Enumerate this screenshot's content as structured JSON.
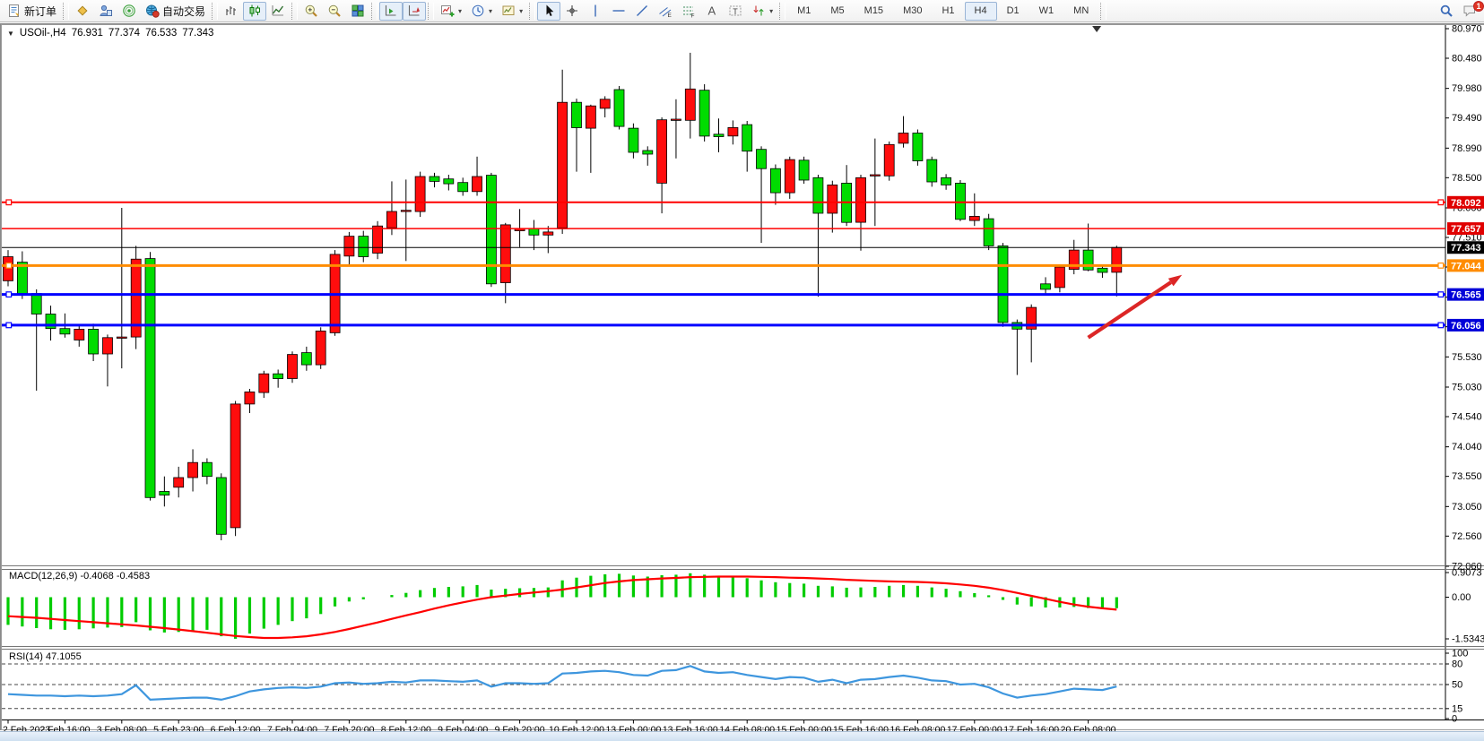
{
  "toolbar": {
    "badge_count": "1",
    "groups": [
      {
        "name": "order",
        "items": [
          {
            "name": "new-order-button",
            "icon": "new-order-icon",
            "label": "新订单"
          }
        ]
      },
      {
        "name": "services",
        "items": [
          {
            "name": "market-watch-button",
            "icon": "market-watch-icon"
          },
          {
            "name": "strategy-tester-button",
            "icon": "tester-icon"
          },
          {
            "name": "alerts-button",
            "icon": "alerts-icon"
          },
          {
            "name": "auto-trading-button",
            "icon": "autotrading-icon",
            "label": "自动交易"
          }
        ]
      },
      {
        "name": "chart-type",
        "items": [
          {
            "name": "bar-chart-button",
            "icon": "bar-chart-icon"
          },
          {
            "name": "candlestick-button",
            "icon": "candles-icon",
            "active": true
          },
          {
            "name": "line-chart-button",
            "icon": "line-chart-icon"
          }
        ]
      },
      {
        "name": "zoom",
        "items": [
          {
            "name": "zoom-in-button",
            "icon": "zoom-in-icon"
          },
          {
            "name": "zoom-out-button",
            "icon": "zoom-out-icon"
          },
          {
            "name": "tile-windows-button",
            "icon": "tile-windows-icon"
          }
        ]
      },
      {
        "name": "scroll",
        "items": [
          {
            "name": "chart-shift-button",
            "icon": "chart-shift-icon",
            "active": true
          },
          {
            "name": "auto-scroll-button",
            "icon": "auto-scroll-icon",
            "active": true
          }
        ]
      },
      {
        "name": "objects",
        "items": [
          {
            "name": "indicators-button",
            "icon": "add-indicator-icon",
            "dropdown": true
          },
          {
            "name": "periods-button",
            "icon": "period-clock-icon",
            "dropdown": true
          },
          {
            "name": "templates-button",
            "icon": "template-icon",
            "dropdown": true
          }
        ]
      },
      {
        "name": "tools",
        "items": [
          {
            "name": "cursor-button",
            "icon": "cursor-icon",
            "active": true
          },
          {
            "name": "crosshair-button",
            "icon": "crosshair-icon"
          },
          {
            "name": "vline-button",
            "icon": "vline-icon"
          },
          {
            "name": "hline-button",
            "icon": "hline-icon"
          },
          {
            "name": "trendline-button",
            "icon": "trendline-icon"
          },
          {
            "name": "channel-button",
            "icon": "channel-icon"
          },
          {
            "name": "fibonacci-button",
            "icon": "fibo-icon"
          },
          {
            "name": "text-button",
            "icon": "text-icon"
          },
          {
            "name": "label-button",
            "icon": "label-icon"
          },
          {
            "name": "shapes-button",
            "icon": "shapes-icon",
            "dropdown": true
          }
        ]
      },
      {
        "name": "timeframes",
        "items": [
          {
            "name": "timeframe-m1-button",
            "label": "M1"
          },
          {
            "name": "timeframe-m5-button",
            "label": "M5"
          },
          {
            "name": "timeframe-m15-button",
            "label": "M15"
          },
          {
            "name": "timeframe-m30-button",
            "label": "M30"
          },
          {
            "name": "timeframe-h1-button",
            "label": "H1"
          },
          {
            "name": "timeframe-h4-button",
            "label": "H4",
            "active": true
          },
          {
            "name": "timeframe-d1-button",
            "label": "D1"
          },
          {
            "name": "timeframe-w1-button",
            "label": "W1"
          },
          {
            "name": "timeframe-mn-button",
            "label": "MN"
          }
        ]
      },
      {
        "name": "right",
        "align": "right",
        "items": [
          {
            "name": "search-button",
            "icon": "search-icon"
          },
          {
            "name": "chat-button",
            "icon": "chat-icon",
            "badge": "1"
          }
        ]
      }
    ]
  },
  "chart_header": {
    "expand_marker": "▼",
    "symbol_period": "USOil-,H4",
    "open": "76.931",
    "high": "77.374",
    "low": "76.533",
    "close": "77.343"
  },
  "colors": {
    "bull": "#FF0D0D",
    "bear": "#00DC00",
    "wick": "#000000",
    "hline_red": "#FF0000",
    "hline_orange": "#FF8C00",
    "hline_blue": "#0000FF",
    "current_line": "#000000",
    "macd_hist": "#00CC00",
    "macd_signal": "#FF0000",
    "rsi_line": "#3E96DE",
    "arrow": "#DC2626",
    "axis_text": "#000000"
  },
  "chart_data": {
    "type": "candlestick",
    "symbol": "USOil-",
    "period": "H4",
    "ylim": [
      72.06,
      80.97
    ],
    "grid": false,
    "price_axis_ticks": [
      "80.970",
      "80.480",
      "79.980",
      "79.490",
      "78.990",
      "78.500",
      "78.000",
      "77.510",
      "77.020",
      "76.520",
      "76.030",
      "75.530",
      "75.030",
      "74.540",
      "74.040",
      "73.550",
      "73.050",
      "72.560",
      "72.060"
    ],
    "time_labels": [
      "2 Feb 2023",
      "2 Feb 16:00",
      "3 Feb 08:00",
      "5 Feb 23:00",
      "6 Feb 12:00",
      "7 Feb 04:00",
      "7 Feb 20:00",
      "8 Feb 12:00",
      "9 Feb 04:00",
      "9 Feb 20:00",
      "10 Feb 12:00",
      "13 Feb 00:00",
      "13 Feb 16:00",
      "14 Feb 08:00",
      "15 Feb 00:00",
      "15 Feb 16:00",
      "16 Feb 08:00",
      "17 Feb 00:00",
      "17 Feb 16:00",
      "20 Feb 08:00"
    ],
    "hlines": [
      {
        "price": 78.092,
        "label": "78.092",
        "color": "#FF0000",
        "width": 2,
        "badge_bg": "#E00000",
        "handles": true
      },
      {
        "price": 77.657,
        "label": "77.657",
        "color": "#FF0000",
        "width": 1.5,
        "badge_bg": "#E00000",
        "handles": false
      },
      {
        "price": 77.343,
        "label": "77.343",
        "color": "#000000",
        "width": 1,
        "badge_bg": "#000000",
        "handles": false,
        "current": true
      },
      {
        "price": 77.044,
        "label": "77.044",
        "color": "#FF8C00",
        "width": 3,
        "badge_bg": "#FF8C00",
        "handles": true
      },
      {
        "price": 76.565,
        "label": "76.565",
        "color": "#0000FF",
        "width": 3,
        "badge_bg": "#0000D8",
        "handles": true
      },
      {
        "price": 76.056,
        "label": "76.056",
        "color": "#0000FF",
        "width": 3,
        "badge_bg": "#0000D8",
        "handles": true
      }
    ],
    "candles": [
      [
        76.79,
        77.3,
        76.7,
        77.19
      ],
      [
        77.1,
        77.28,
        76.49,
        76.58
      ],
      [
        76.58,
        76.65,
        74.97,
        76.24
      ],
      [
        76.24,
        76.38,
        75.8,
        76.0
      ],
      [
        76.0,
        76.25,
        75.85,
        75.91
      ],
      [
        75.81,
        76.05,
        75.7,
        75.99
      ],
      [
        75.99,
        76.08,
        75.46,
        75.58
      ],
      [
        75.58,
        75.9,
        75.04,
        75.85
      ],
      [
        75.85,
        78.0,
        75.34,
        75.86
      ],
      [
        75.86,
        77.37,
        75.66,
        77.15
      ],
      [
        77.16,
        77.27,
        73.15,
        73.2
      ],
      [
        73.3,
        73.55,
        73.05,
        73.24
      ],
      [
        73.37,
        73.71,
        73.2,
        73.53
      ],
      [
        73.53,
        74.0,
        73.3,
        73.78
      ],
      [
        73.78,
        73.85,
        73.42,
        73.55
      ],
      [
        73.53,
        73.6,
        72.49,
        72.59
      ],
      [
        72.7,
        74.8,
        72.56,
        74.75
      ],
      [
        74.75,
        75.0,
        74.6,
        74.95
      ],
      [
        74.94,
        75.3,
        74.85,
        75.25
      ],
      [
        75.25,
        75.32,
        75.02,
        75.17
      ],
      [
        75.17,
        75.62,
        75.1,
        75.57
      ],
      [
        75.6,
        75.7,
        75.3,
        75.4
      ],
      [
        75.4,
        76.02,
        75.33,
        75.96
      ],
      [
        75.93,
        77.3,
        75.88,
        77.23
      ],
      [
        77.2,
        77.6,
        77.05,
        77.53
      ],
      [
        77.53,
        77.62,
        77.1,
        77.19
      ],
      [
        77.25,
        77.78,
        77.15,
        77.7
      ],
      [
        77.67,
        78.44,
        77.55,
        77.94
      ],
      [
        77.95,
        78.47,
        77.12,
        77.96
      ],
      [
        77.94,
        78.6,
        77.85,
        78.52
      ],
      [
        78.52,
        78.58,
        78.34,
        78.44
      ],
      [
        78.48,
        78.55,
        78.29,
        78.4
      ],
      [
        78.42,
        78.5,
        78.2,
        78.27
      ],
      [
        78.27,
        78.85,
        78.2,
        78.52
      ],
      [
        78.54,
        78.58,
        76.69,
        76.74
      ],
      [
        76.76,
        77.75,
        76.42,
        77.72
      ],
      [
        77.62,
        77.98,
        77.35,
        77.66
      ],
      [
        77.66,
        77.8,
        77.3,
        77.55
      ],
      [
        77.55,
        77.7,
        77.25,
        77.6
      ],
      [
        77.67,
        80.29,
        77.57,
        79.75
      ],
      [
        79.75,
        79.81,
        78.6,
        79.33
      ],
      [
        79.32,
        79.71,
        78.58,
        79.69
      ],
      [
        79.65,
        79.85,
        79.5,
        79.8
      ],
      [
        79.96,
        80.02,
        79.3,
        79.35
      ],
      [
        79.32,
        79.4,
        78.82,
        78.92
      ],
      [
        78.95,
        79.02,
        78.7,
        78.89
      ],
      [
        78.41,
        79.5,
        77.91,
        79.46
      ],
      [
        79.45,
        79.8,
        78.82,
        79.47
      ],
      [
        79.45,
        80.57,
        79.15,
        79.97
      ],
      [
        79.95,
        80.05,
        79.1,
        79.19
      ],
      [
        79.22,
        79.48,
        78.92,
        79.18
      ],
      [
        79.19,
        79.45,
        79.05,
        79.33
      ],
      [
        79.38,
        79.44,
        78.6,
        78.94
      ],
      [
        78.97,
        79.02,
        77.42,
        78.65
      ],
      [
        78.65,
        78.72,
        78.05,
        78.25
      ],
      [
        78.25,
        78.85,
        78.15,
        78.8
      ],
      [
        78.79,
        78.85,
        78.4,
        78.46
      ],
      [
        78.5,
        78.55,
        76.53,
        77.91
      ],
      [
        77.91,
        78.45,
        77.59,
        78.38
      ],
      [
        78.41,
        78.71,
        77.7,
        77.76
      ],
      [
        77.76,
        78.55,
        77.29,
        78.5
      ],
      [
        78.53,
        79.15,
        77.7,
        78.55
      ],
      [
        78.53,
        79.1,
        78.45,
        79.05
      ],
      [
        79.07,
        79.52,
        79.0,
        79.24
      ],
      [
        79.24,
        79.3,
        78.7,
        78.78
      ],
      [
        78.8,
        78.85,
        78.35,
        78.43
      ],
      [
        78.5,
        78.56,
        78.3,
        78.38
      ],
      [
        78.41,
        78.46,
        77.78,
        77.81
      ],
      [
        77.79,
        78.24,
        77.7,
        77.86
      ],
      [
        77.82,
        77.9,
        77.3,
        77.37
      ],
      [
        77.37,
        77.42,
        76.03,
        76.1
      ],
      [
        76.1,
        76.15,
        75.23,
        75.99
      ],
      [
        75.99,
        76.4,
        75.44,
        76.35
      ],
      [
        76.74,
        76.85,
        76.55,
        76.65
      ],
      [
        76.68,
        77.05,
        76.6,
        77.02
      ],
      [
        76.98,
        77.47,
        76.9,
        77.3
      ],
      [
        77.3,
        77.74,
        76.95,
        76.97
      ],
      [
        77.0,
        77.05,
        76.84,
        76.93
      ],
      [
        76.931,
        77.374,
        76.533,
        77.343
      ]
    ],
    "macd": {
      "label": "MACD(12,26,9) -0.4068 -0.4583",
      "axis_ticks": [
        "0.9073",
        "0.00",
        "-1.5343"
      ],
      "axis_tick_values": [
        0.9073,
        0.0,
        -1.5343
      ],
      "histogram": [
        -1.02,
        -1.08,
        -1.14,
        -1.18,
        -1.2,
        -1.18,
        -1.15,
        -1.12,
        -1.1,
        -0.92,
        -1.22,
        -1.3,
        -1.28,
        -1.22,
        -1.2,
        -1.44,
        -1.53,
        -1.34,
        -1.16,
        -1.02,
        -0.88,
        -0.78,
        -0.62,
        -0.34,
        -0.16,
        -0.08,
        0.0,
        0.08,
        0.16,
        0.26,
        0.34,
        0.38,
        0.4,
        0.45,
        0.28,
        0.31,
        0.33,
        0.34,
        0.36,
        0.62,
        0.72,
        0.79,
        0.84,
        0.86,
        0.8,
        0.76,
        0.81,
        0.83,
        0.88,
        0.83,
        0.78,
        0.76,
        0.7,
        0.62,
        0.55,
        0.52,
        0.5,
        0.42,
        0.4,
        0.35,
        0.36,
        0.38,
        0.42,
        0.45,
        0.42,
        0.36,
        0.31,
        0.22,
        0.15,
        0.07,
        -0.1,
        -0.27,
        -0.34,
        -0.38,
        -0.38,
        -0.36,
        -0.4,
        -0.44,
        -0.4068
      ],
      "signal": [
        -0.7,
        -0.73,
        -0.76,
        -0.8,
        -0.84,
        -0.88,
        -0.92,
        -0.96,
        -1.0,
        -1.04,
        -1.09,
        -1.14,
        -1.19,
        -1.25,
        -1.31,
        -1.37,
        -1.43,
        -1.47,
        -1.5,
        -1.5,
        -1.48,
        -1.44,
        -1.37,
        -1.28,
        -1.17,
        -1.05,
        -0.93,
        -0.8,
        -0.67,
        -0.55,
        -0.42,
        -0.3,
        -0.19,
        -0.09,
        0.0,
        0.06,
        0.12,
        0.17,
        0.22,
        0.28,
        0.36,
        0.44,
        0.52,
        0.58,
        0.63,
        0.66,
        0.69,
        0.71,
        0.74,
        0.75,
        0.76,
        0.76,
        0.76,
        0.75,
        0.74,
        0.72,
        0.71,
        0.69,
        0.67,
        0.64,
        0.62,
        0.6,
        0.58,
        0.57,
        0.56,
        0.54,
        0.51,
        0.47,
        0.42,
        0.35,
        0.26,
        0.16,
        0.05,
        -0.06,
        -0.17,
        -0.27,
        -0.35,
        -0.41,
        -0.4583
      ]
    },
    "rsi": {
      "label": "RSI(14) 47.1055",
      "axis_ticks": [
        "100",
        "80",
        "50",
        "15",
        "0"
      ],
      "axis_tick_values": [
        100,
        80,
        50,
        15,
        0
      ],
      "dashed_levels": [
        80,
        50,
        15
      ],
      "values": [
        36,
        35,
        34,
        34,
        33,
        34,
        33,
        34,
        36,
        49,
        28,
        29,
        30,
        31,
        31,
        28,
        33,
        40,
        43,
        45,
        46,
        45,
        47,
        52,
        53,
        51,
        52,
        54,
        53,
        56,
        56,
        55,
        54,
        56,
        47,
        52,
        52,
        51,
        52,
        66,
        67,
        69,
        70,
        68,
        64,
        63,
        70,
        71,
        77,
        69,
        67,
        68,
        64,
        61,
        58,
        61,
        60,
        54,
        57,
        52,
        57,
        58,
        61,
        63,
        60,
        56,
        55,
        50,
        51,
        46,
        37,
        31,
        34,
        36,
        40,
        44,
        43,
        42,
        47.1055
      ]
    },
    "annotation_arrow": {
      "from_bar": 76.0,
      "from_price": 75.85,
      "to_bar": 82.6,
      "to_price": 76.89
    },
    "shift_marker_bar": 76.6
  }
}
